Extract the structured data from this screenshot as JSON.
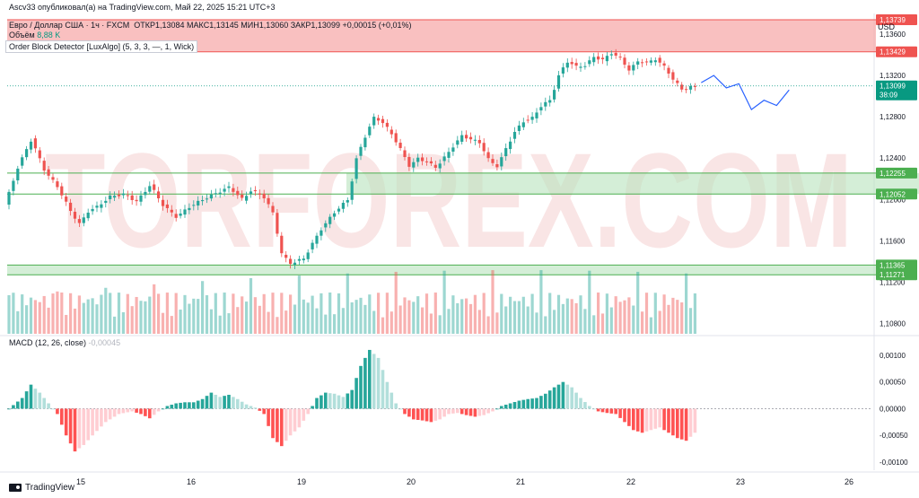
{
  "header": {
    "publisher": "Ascv33 опубликовал(а) на TradingView.com, Май 22, 2025 15:21 UTC+3",
    "symbol": "Евро / Доллар США · 1ч · FXCM",
    "ohlc": "ОТКР1,13084  МАКС1,13145  МИН1,13060  ЗАКР1,13099 +0,00015 (+0,01%)",
    "volume_label": "Объём",
    "volume_value": "8,88 K",
    "indicator": "Order Block Detector [LuxAlgo] (5, 3, 3, —, 1, Wick)",
    "currency": "USD",
    "macd_label": "MACD (12, 26, close)",
    "macd_value": "-0,00045"
  },
  "footer": {
    "brand": "TradingView"
  },
  "watermark": "TORFOREX.COM",
  "colors": {
    "up": "#26a69a",
    "down": "#ef5350",
    "bear_zone": "#f7a5a5",
    "bull_zone": "#b7e3bd",
    "forecast": "#2962ff",
    "last_price": "#089981"
  },
  "chart_data": [
    {
      "type": "candlestick",
      "title": "Евро / Доллар США · 1ч · FXCM",
      "ylim": [
        1.107,
        1.138
      ],
      "y_ticks": [
        "1,13600",
        "1,13200",
        "1,12800",
        "1,12400",
        "1,12000",
        "1,11600",
        "1,11200",
        "1,10800"
      ],
      "y_tick_values": [
        1.136,
        1.132,
        1.128,
        1.124,
        1.12,
        1.116,
        1.112,
        1.108
      ],
      "x_ticks": [
        "15",
        "16",
        "19",
        "20",
        "21",
        "22",
        "23",
        "26"
      ],
      "price_labels": [
        {
          "text": "1,13739",
          "value": 1.13739,
          "kind": "bear"
        },
        {
          "text": "1,13429",
          "value": 1.13429,
          "kind": "bear"
        },
        {
          "text": "1,13099",
          "value": 1.13099,
          "kind": "last",
          "sub": "38:09"
        },
        {
          "text": "1,12255",
          "value": 1.12255,
          "kind": "bull"
        },
        {
          "text": "1,12052",
          "value": 1.12052,
          "kind": "bull"
        },
        {
          "text": "1,11365",
          "value": 1.11365,
          "kind": "bull"
        },
        {
          "text": "1,11271",
          "value": 1.11271,
          "kind": "bull"
        }
      ],
      "zones": [
        {
          "kind": "bear",
          "top": 1.13739,
          "bottom": 1.13429
        },
        {
          "kind": "bull",
          "top": 1.12255,
          "bottom": 1.12052
        },
        {
          "kind": "bull",
          "top": 1.11365,
          "bottom": 1.11271
        }
      ],
      "forecast": [
        [
          0,
          1.1313
        ],
        [
          1,
          1.132
        ],
        [
          2,
          1.1308
        ],
        [
          3,
          1.1312
        ],
        [
          4,
          1.1287
        ],
        [
          5,
          1.1296
        ],
        [
          6,
          1.1291
        ],
        [
          7,
          1.1306
        ]
      ],
      "waypoints": [
        [
          0,
          1.1195
        ],
        [
          3,
          1.1232
        ],
        [
          6,
          1.1258
        ],
        [
          9,
          1.1228
        ],
        [
          12,
          1.1212
        ],
        [
          15,
          1.1188
        ],
        [
          17,
          1.1176
        ],
        [
          19,
          1.1189
        ],
        [
          21,
          1.1193
        ],
        [
          24,
          1.1203
        ],
        [
          27,
          1.1205
        ],
        [
          30,
          1.1198
        ],
        [
          33,
          1.1214
        ],
        [
          36,
          1.1194
        ],
        [
          39,
          1.1183
        ],
        [
          42,
          1.1193
        ],
        [
          45,
          1.12
        ],
        [
          48,
          1.1206
        ],
        [
          51,
          1.1212
        ],
        [
          54,
          1.12
        ],
        [
          56,
          1.1209
        ],
        [
          59,
          1.1202
        ],
        [
          61,
          1.1186
        ],
        [
          63,
          1.1146
        ],
        [
          65,
          1.1138
        ],
        [
          68,
          1.1143
        ],
        [
          70,
          1.1158
        ],
        [
          72,
          1.1172
        ],
        [
          75,
          1.1188
        ],
        [
          78,
          1.12
        ],
        [
          80,
          1.1241
        ],
        [
          82,
          1.1262
        ],
        [
          84,
          1.128
        ],
        [
          86,
          1.1274
        ],
        [
          88,
          1.1263
        ],
        [
          90,
          1.1248
        ],
        [
          92,
          1.1232
        ],
        [
          94,
          1.124
        ],
        [
          96,
          1.1236
        ],
        [
          98,
          1.1231
        ],
        [
          100,
          1.1241
        ],
        [
          102,
          1.1252
        ],
        [
          104,
          1.1262
        ],
        [
          106,
          1.1258
        ],
        [
          108,
          1.1255
        ],
        [
          110,
          1.1238
        ],
        [
          112,
          1.1232
        ],
        [
          114,
          1.125
        ],
        [
          116,
          1.1266
        ],
        [
          118,
          1.1276
        ],
        [
          120,
          1.1279
        ],
        [
          122,
          1.1291
        ],
        [
          124,
          1.1296
        ],
        [
          126,
          1.1321
        ],
        [
          128,
          1.1334
        ],
        [
          130,
          1.1328
        ],
        [
          132,
          1.133
        ],
        [
          134,
          1.1338
        ],
        [
          136,
          1.1335
        ],
        [
          138,
          1.1342
        ],
        [
          140,
          1.1336
        ],
        [
          142,
          1.1325
        ],
        [
          144,
          1.1334
        ],
        [
          146,
          1.1332
        ],
        [
          148,
          1.1336
        ],
        [
          150,
          1.1328
        ],
        [
          152,
          1.1316
        ],
        [
          154,
          1.1306
        ],
        [
          156,
          1.1309
        ]
      ]
    },
    {
      "type": "bar",
      "title": "MACD (12, 26, close)",
      "ylim": [
        -0.00105,
        0.0012
      ],
      "y_ticks": [
        "0,00100",
        "0,00050",
        "0,00000",
        "-0,00050",
        "-0,00100"
      ],
      "y_tick_values": [
        0.001,
        0.0005,
        0,
        -0.0005,
        -0.001
      ],
      "waypoints": [
        [
          0,
          0.0
        ],
        [
          3,
          0.0002
        ],
        [
          5,
          0.00045
        ],
        [
          7,
          0.0003
        ],
        [
          9,
          0.0001
        ],
        [
          11,
          -0.0001
        ],
        [
          13,
          -0.0005
        ],
        [
          15,
          -0.0008
        ],
        [
          17,
          -0.00068
        ],
        [
          19,
          -0.0005
        ],
        [
          22,
          -0.00025
        ],
        [
          25,
          -0.0001
        ],
        [
          28,
          -5e-05
        ],
        [
          30,
          -0.0001
        ],
        [
          32,
          -0.00018
        ],
        [
          34,
          -5e-05
        ],
        [
          36,
          5e-05
        ],
        [
          38,
          0.0001
        ],
        [
          40,
          0.00012
        ],
        [
          42,
          0.00012
        ],
        [
          44,
          0.00018
        ],
        [
          46,
          0.0003
        ],
        [
          48,
          0.00022
        ],
        [
          50,
          0.00026
        ],
        [
          52,
          0.00018
        ],
        [
          54,
          8e-05
        ],
        [
          56,
          2e-05
        ],
        [
          58,
          -0.0001
        ],
        [
          60,
          -0.00055
        ],
        [
          62,
          -0.0007
        ],
        [
          64,
          -0.0005
        ],
        [
          66,
          -0.00035
        ],
        [
          68,
          -0.0001
        ],
        [
          70,
          0.0002
        ],
        [
          72,
          0.0003
        ],
        [
          74,
          0.00028
        ],
        [
          76,
          0.00022
        ],
        [
          78,
          0.00035
        ],
        [
          80,
          0.0008
        ],
        [
          82,
          0.0011
        ],
        [
          84,
          0.00095
        ],
        [
          86,
          0.0005
        ],
        [
          88,
          0.0001
        ],
        [
          90,
          -0.0001
        ],
        [
          92,
          -0.0002
        ],
        [
          94,
          -0.00022
        ],
        [
          96,
          -0.00025
        ],
        [
          98,
          -0.0002
        ],
        [
          100,
          -0.0001
        ],
        [
          102,
          -8e-05
        ],
        [
          104,
          -0.00012
        ],
        [
          106,
          -0.00015
        ],
        [
          108,
          -0.00012
        ],
        [
          110,
          -5e-05
        ],
        [
          112,
          5e-05
        ],
        [
          114,
          0.0001
        ],
        [
          116,
          0.00015
        ],
        [
          118,
          0.00018
        ],
        [
          120,
          0.0002
        ],
        [
          122,
          0.00028
        ],
        [
          124,
          0.0004
        ],
        [
          126,
          0.0005
        ],
        [
          128,
          0.0004
        ],
        [
          130,
          0.0002
        ],
        [
          132,
          5e-05
        ],
        [
          134,
          -5e-05
        ],
        [
          136,
          -8e-05
        ],
        [
          138,
          -0.0001
        ],
        [
          140,
          -0.00025
        ],
        [
          142,
          -0.0004
        ],
        [
          144,
          -0.00045
        ],
        [
          146,
          -0.0004
        ],
        [
          148,
          -0.00035
        ],
        [
          150,
          -0.00045
        ],
        [
          152,
          -0.00055
        ],
        [
          154,
          -0.0006
        ],
        [
          156,
          -0.00045
        ]
      ]
    }
  ]
}
